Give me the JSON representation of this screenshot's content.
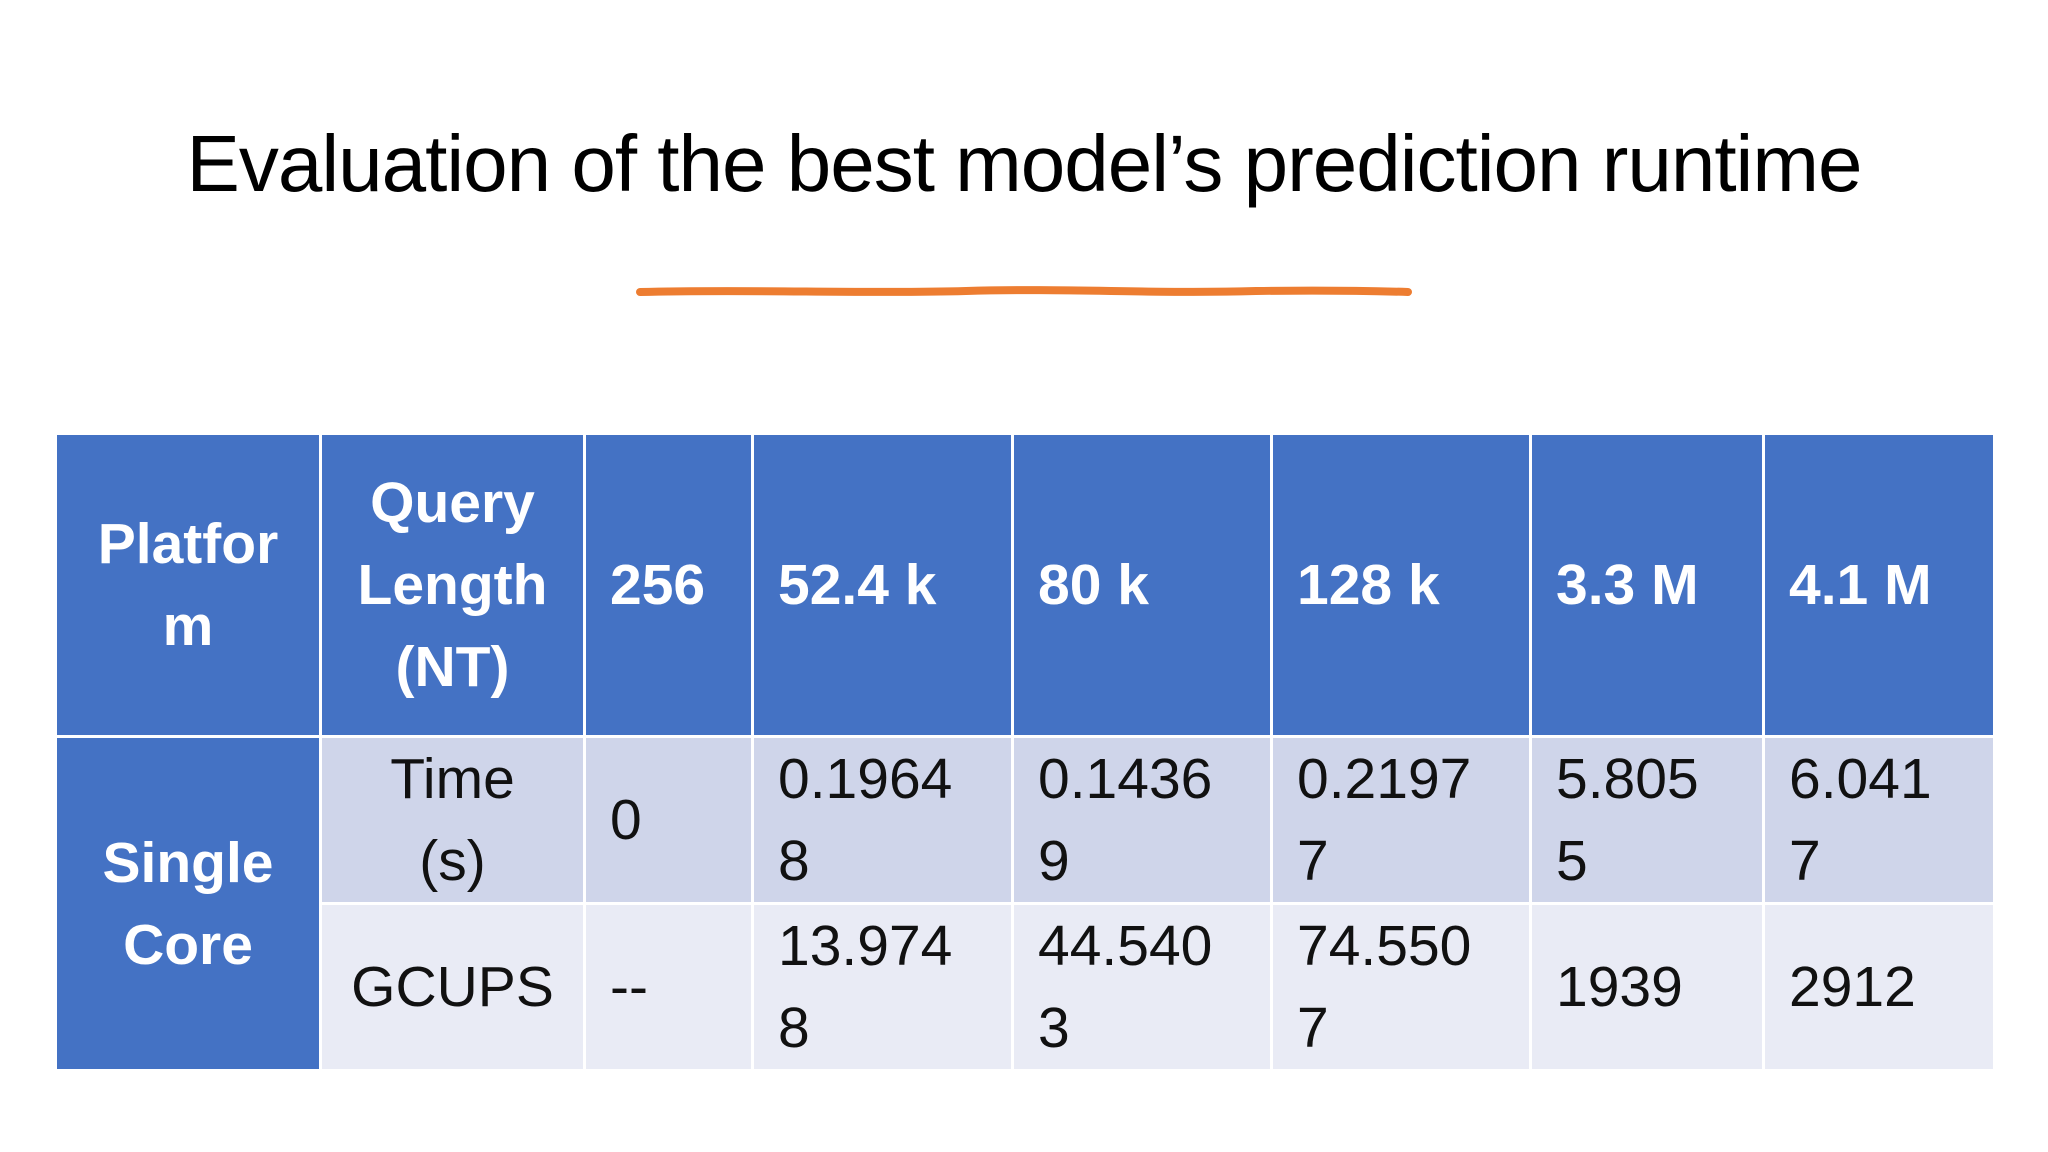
{
  "slide": {
    "title": "Evaluation of the best model’s prediction runtime",
    "accent_color": "#ed7d31"
  },
  "table": {
    "header": {
      "platform": "Platfor\nm",
      "query_length": "Query\nLength\n(NT)",
      "columns": [
        "256",
        "52.4 k",
        "80 k",
        "128 k",
        "3.3 M",
        "4.1 M"
      ]
    },
    "group_label": "Single\nCore",
    "rows": [
      {
        "metric": "Time\n(s)",
        "values": [
          "0",
          "0.1964\n8",
          "0.1436\n9",
          "0.2197\n7",
          "5.805\n5",
          "6.041\n7"
        ]
      },
      {
        "metric": "GCUPS",
        "values": [
          "--",
          "13.974\n8",
          "44.540\n3",
          "74.550\n7",
          "1939",
          "2912"
        ]
      }
    ],
    "colors": {
      "header_bg": "#4472c4",
      "row_odd_bg": "#cfd5ea",
      "row_even_bg": "#e9ebf5"
    }
  }
}
